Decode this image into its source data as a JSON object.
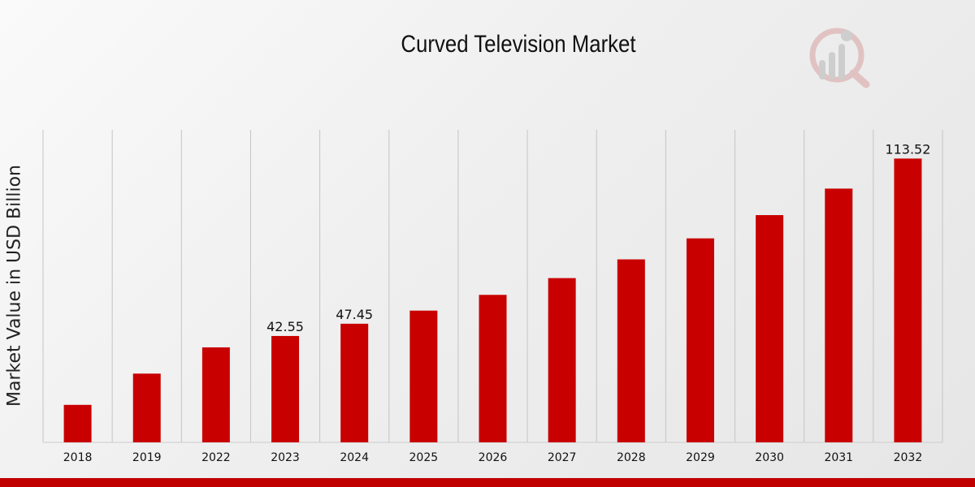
{
  "chart_data": {
    "type": "bar",
    "title": "Curved Television Market",
    "xlabel": "",
    "ylabel": "Market Value in USD Billion",
    "categories": [
      "2018",
      "2019",
      "2022",
      "2023",
      "2024",
      "2025",
      "2026",
      "2027",
      "2028",
      "2029",
      "2030",
      "2031",
      "2032"
    ],
    "values": [
      15.0,
      27.5,
      38.0,
      42.55,
      47.45,
      52.7,
      59.0,
      65.7,
      73.2,
      81.6,
      90.9,
      101.5,
      113.52
    ],
    "data_labels": [
      "",
      "",
      "",
      "42.55",
      "47.45",
      "",
      "",
      "",
      "",
      "",
      "",
      "",
      "113.52"
    ],
    "ylim": [
      0,
      125
    ],
    "grid": "vertical",
    "legend": "none",
    "bar_color": "#c80000",
    "accent_color": "#c00000"
  }
}
